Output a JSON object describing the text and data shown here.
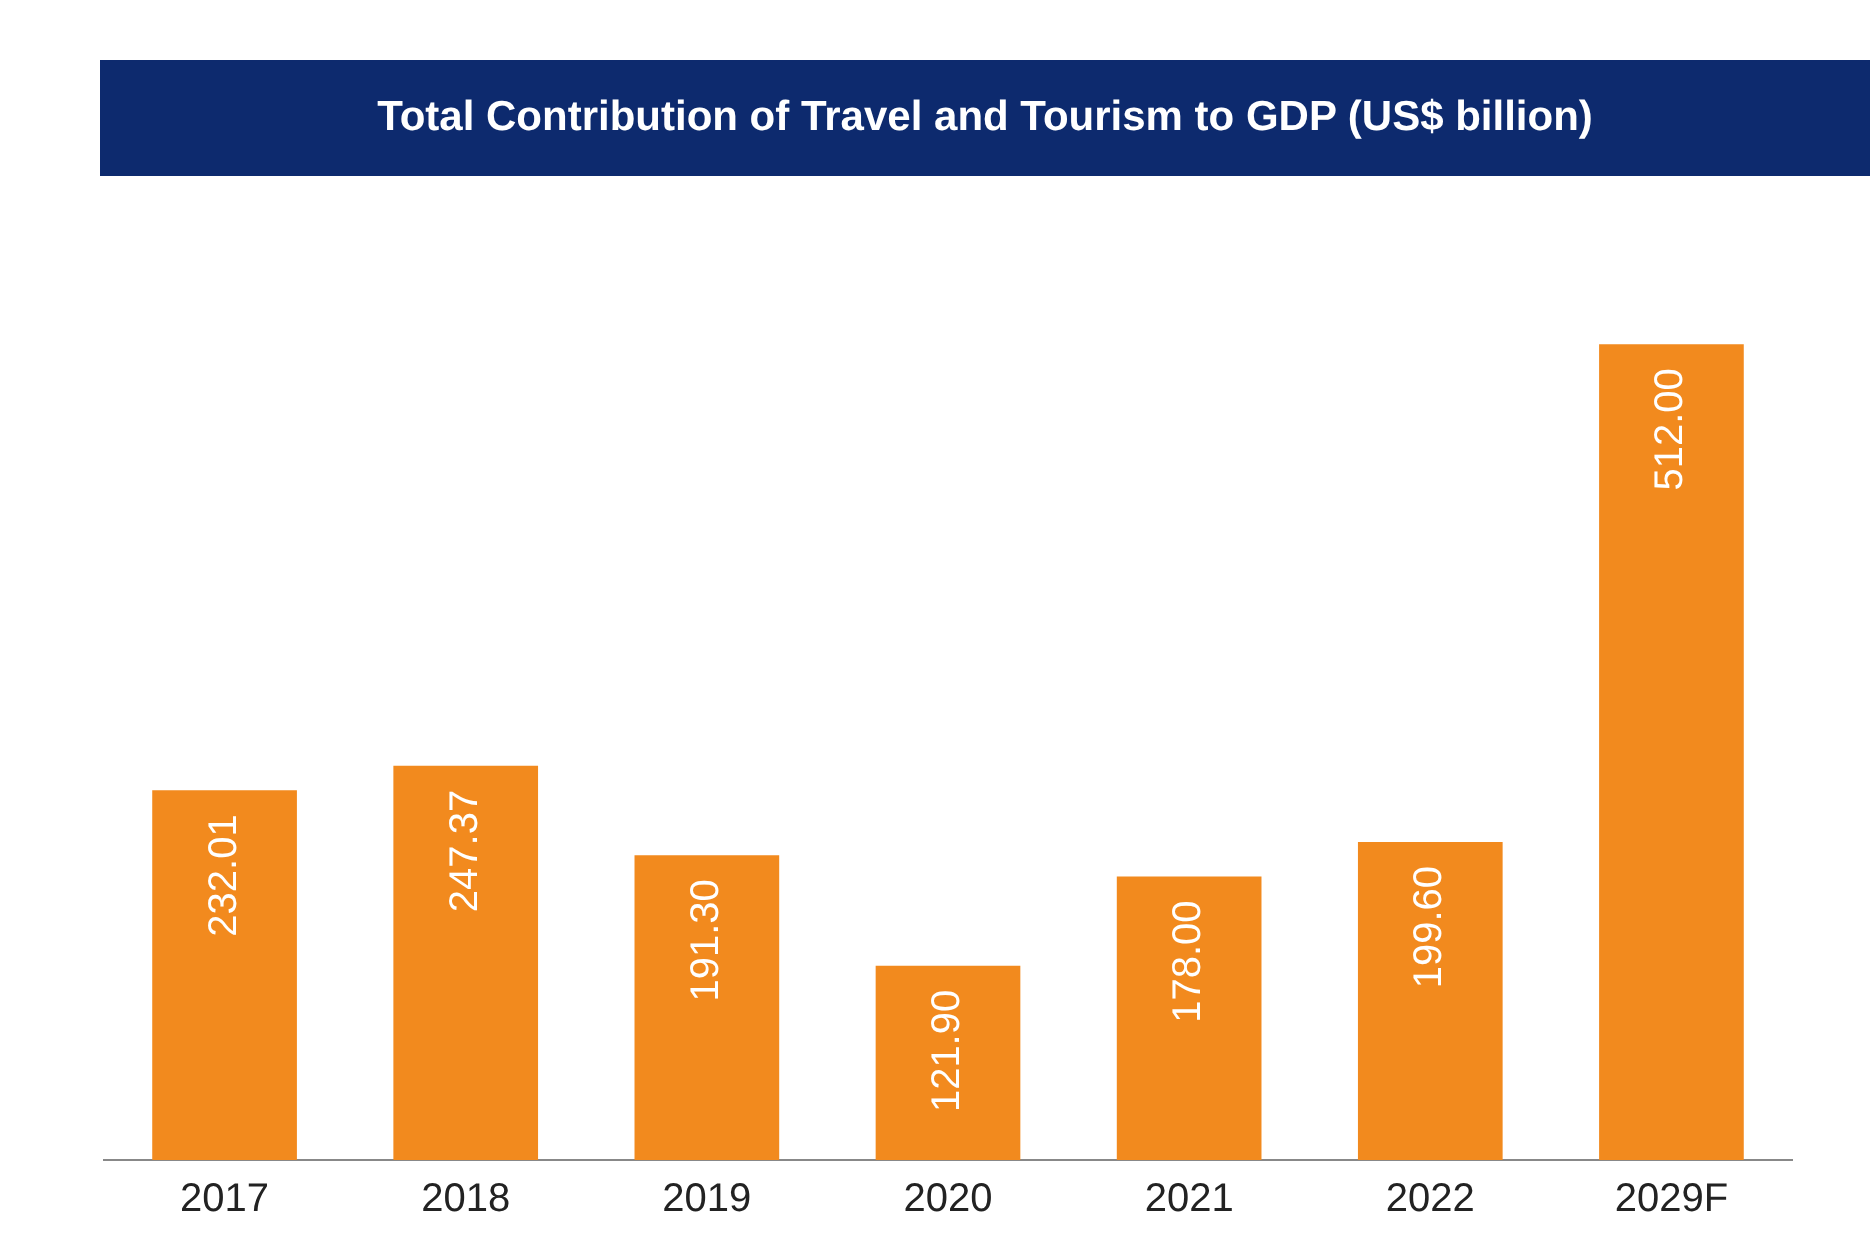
{
  "chart_data": {
    "type": "bar",
    "title": "Total Contribution of Travel and Tourism to GDP (US$ billion)",
    "categories": [
      "2017",
      "2018",
      "2019",
      "2020",
      "2021",
      "2022",
      "2029F"
    ],
    "values": [
      232.01,
      247.37,
      191.3,
      121.9,
      178.0,
      199.6,
      512.0
    ],
    "value_labels": [
      "232.01",
      "247.37",
      "191.30",
      "121.90",
      "178.00",
      "199.60",
      "512.00"
    ],
    "color": "#f28a1e",
    "grid": false,
    "legend": false
  }
}
